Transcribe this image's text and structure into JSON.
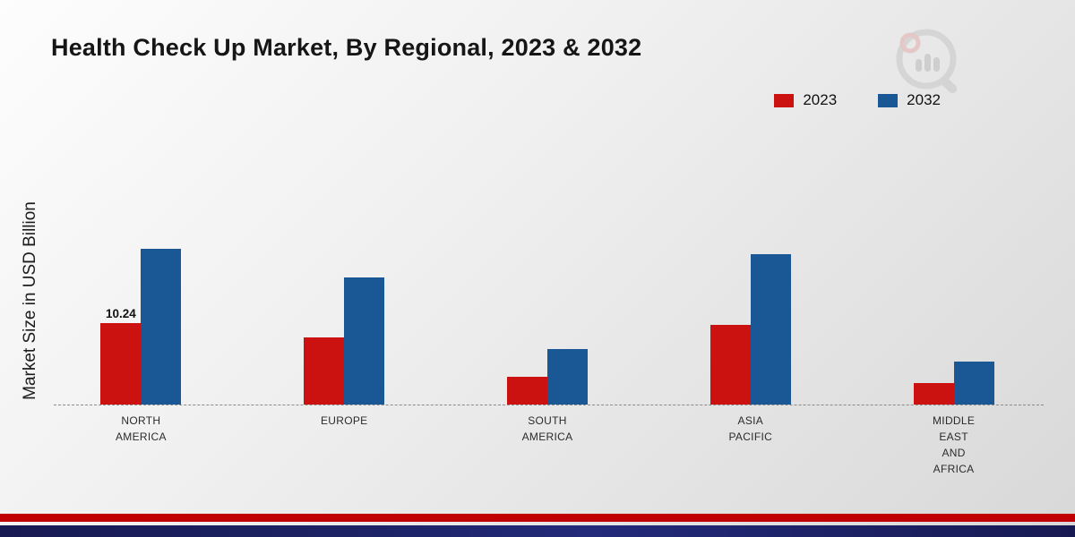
{
  "title": "Health Check Up Market, By Regional, 2023 & 2032",
  "y_axis_label": "Market Size in USD Billion",
  "legend": [
    {
      "label": "2023",
      "color": "#cc1111"
    },
    {
      "label": "2032",
      "color": "#1a5795"
    }
  ],
  "chart_data": {
    "type": "bar",
    "title": "Health Check Up Market, By Regional, 2023 & 2032",
    "ylabel": "Market Size in USD Billion",
    "categories": [
      "NORTH AMERICA",
      "EUROPE",
      "SOUTH AMERICA",
      "ASIA PACIFIC",
      "MIDDLE EAST AND AFRICA"
    ],
    "series": [
      {
        "name": "2023",
        "color": "#cc1111",
        "values": [
          10.24,
          8.4,
          3.5,
          10.0,
          2.7
        ]
      },
      {
        "name": "2032",
        "color": "#1a5795",
        "values": [
          19.5,
          15.9,
          7.0,
          18.9,
          5.4
        ]
      }
    ],
    "data_labels": [
      {
        "series": "2023",
        "category": "NORTH AMERICA",
        "text": "10.24"
      }
    ],
    "ylim": [
      0,
      22
    ],
    "baseline_style": "dashed",
    "legend_position": "top-right",
    "grid": false
  },
  "category_label_lines": [
    [
      "NORTH",
      "AMERICA"
    ],
    [
      "EUROPE"
    ],
    [
      "SOUTH",
      "AMERICA"
    ],
    [
      "ASIA",
      "PACIFIC"
    ],
    [
      "MIDDLE",
      "EAST",
      "AND",
      "AFRICA"
    ]
  ],
  "footer": {
    "red_strip_color": "#c00000",
    "navy_strip_color": "#1d2366"
  }
}
